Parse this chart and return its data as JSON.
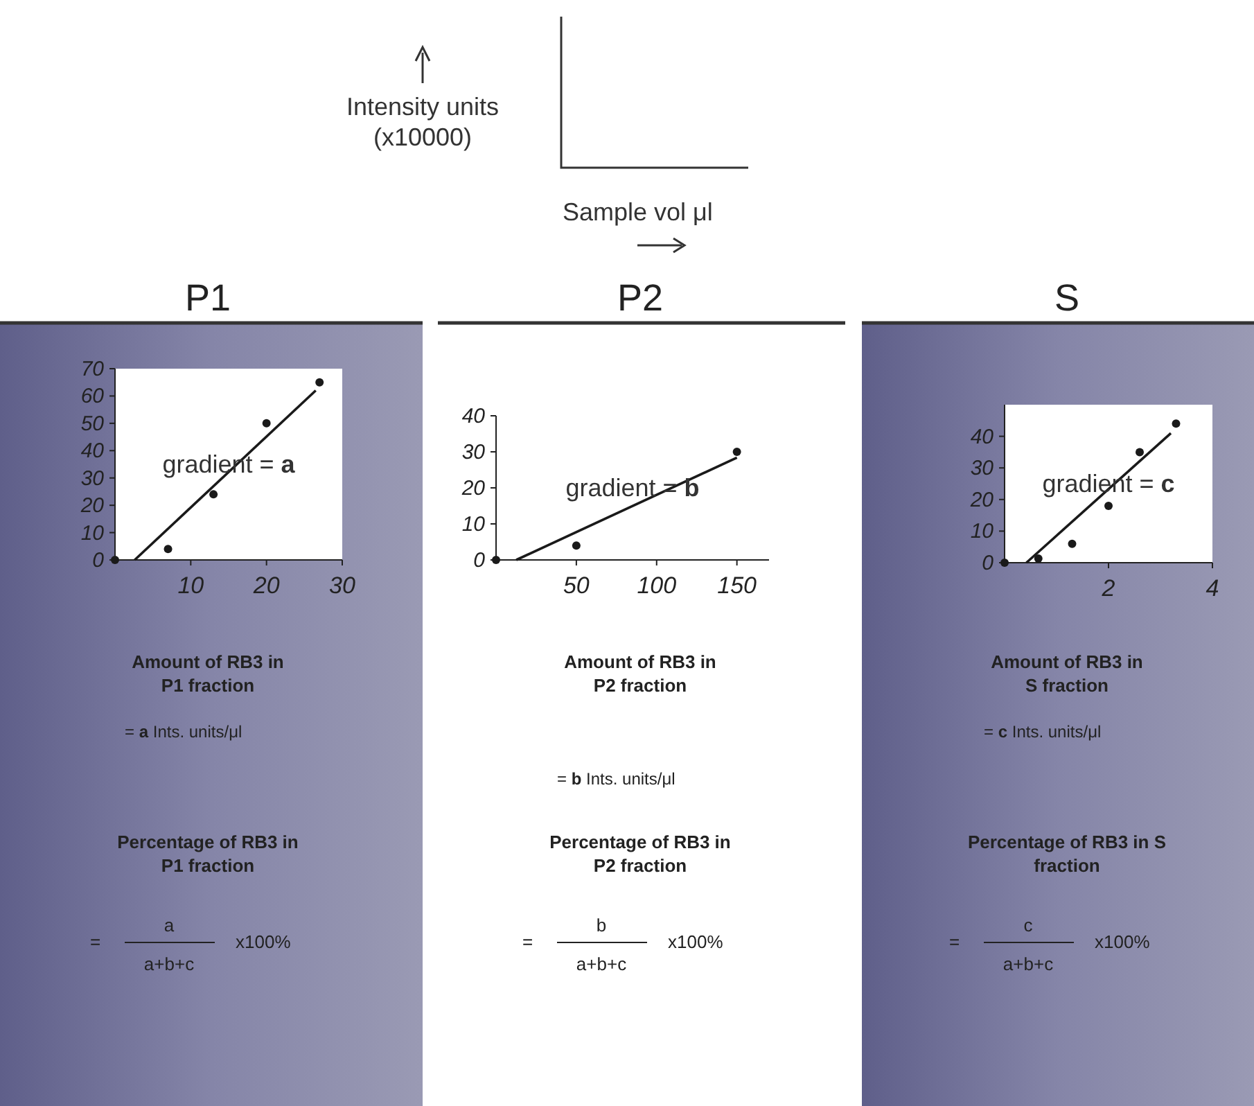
{
  "chart_data": [
    {
      "type": "other",
      "ylabel": "Intensity units\n(x10000)",
      "xlabel": "Sample vol μl"
    },
    {
      "type": "scatter",
      "title": "P1",
      "xlim": [
        0,
        30
      ],
      "xticks": [
        10,
        20,
        30
      ],
      "ylim": [
        0,
        70
      ],
      "yticks": [
        0,
        10,
        20,
        30,
        40,
        50,
        60,
        70
      ],
      "series": [
        {
          "type": "scatter",
          "marker": "circle",
          "color": "#1a1a1a",
          "x": [
            0,
            7,
            13,
            20,
            27
          ],
          "values": [
            0,
            4,
            24,
            50,
            65
          ]
        },
        {
          "type": "line",
          "color": "#1a1a1a",
          "x": [
            2.6,
            26.5
          ],
          "values": [
            0,
            62
          ]
        }
      ],
      "annotations": [
        "gradient = a",
        "Amount of RB3 in\nP1 fraction",
        "= a Ints. units/μl",
        "Percentage of RB3 in\nP1 fraction",
        "=",
        "a",
        "a+b+c",
        "x100%"
      ]
    },
    {
      "type": "scatter",
      "title": "P2",
      "xlim": [
        0,
        170
      ],
      "xticks": [
        50,
        100,
        150
      ],
      "ylim": [
        0,
        40
      ],
      "yticks": [
        0,
        10,
        20,
        30,
        40
      ],
      "series": [
        {
          "type": "scatter",
          "marker": "circle",
          "color": "#1a1a1a",
          "x": [
            0,
            50,
            150
          ],
          "values": [
            0,
            4,
            30
          ]
        },
        {
          "type": "line",
          "color": "#1a1a1a",
          "x": [
            12.6,
            150
          ],
          "values": [
            0,
            28.4
          ]
        }
      ],
      "annotations": [
        "gradient = b",
        "Amount of RB3 in\nP2 fraction",
        "= b Ints. units/μl",
        "Percentage of RB3 in\nP2 fraction",
        "=",
        "b",
        "a+b+c",
        "x100%"
      ]
    },
    {
      "type": "scatter",
      "title": "S",
      "xlim": [
        0,
        4
      ],
      "xticks": [
        2,
        4
      ],
      "ylim": [
        0,
        50
      ],
      "yticks": [
        0,
        10,
        20,
        30,
        40
      ],
      "series": [
        {
          "type": "scatter",
          "marker": "circle",
          "color": "#1a1a1a",
          "x": [
            0,
            0.65,
            1.3,
            2,
            2.6,
            3.3
          ],
          "values": [
            0,
            1.3,
            6,
            18,
            35,
            44
          ]
        },
        {
          "type": "line",
          "color": "#1a1a1a",
          "x": [
            0.42,
            3.2
          ],
          "values": [
            0,
            41
          ]
        }
      ],
      "annotations": [
        "gradient = c",
        "Amount of RB3 in\nS fraction",
        "= c Ints. units/μl",
        "Percentage of RB3 in S\nfraction",
        "=",
        "c",
        "a+b+c",
        "x100%"
      ]
    }
  ]
}
